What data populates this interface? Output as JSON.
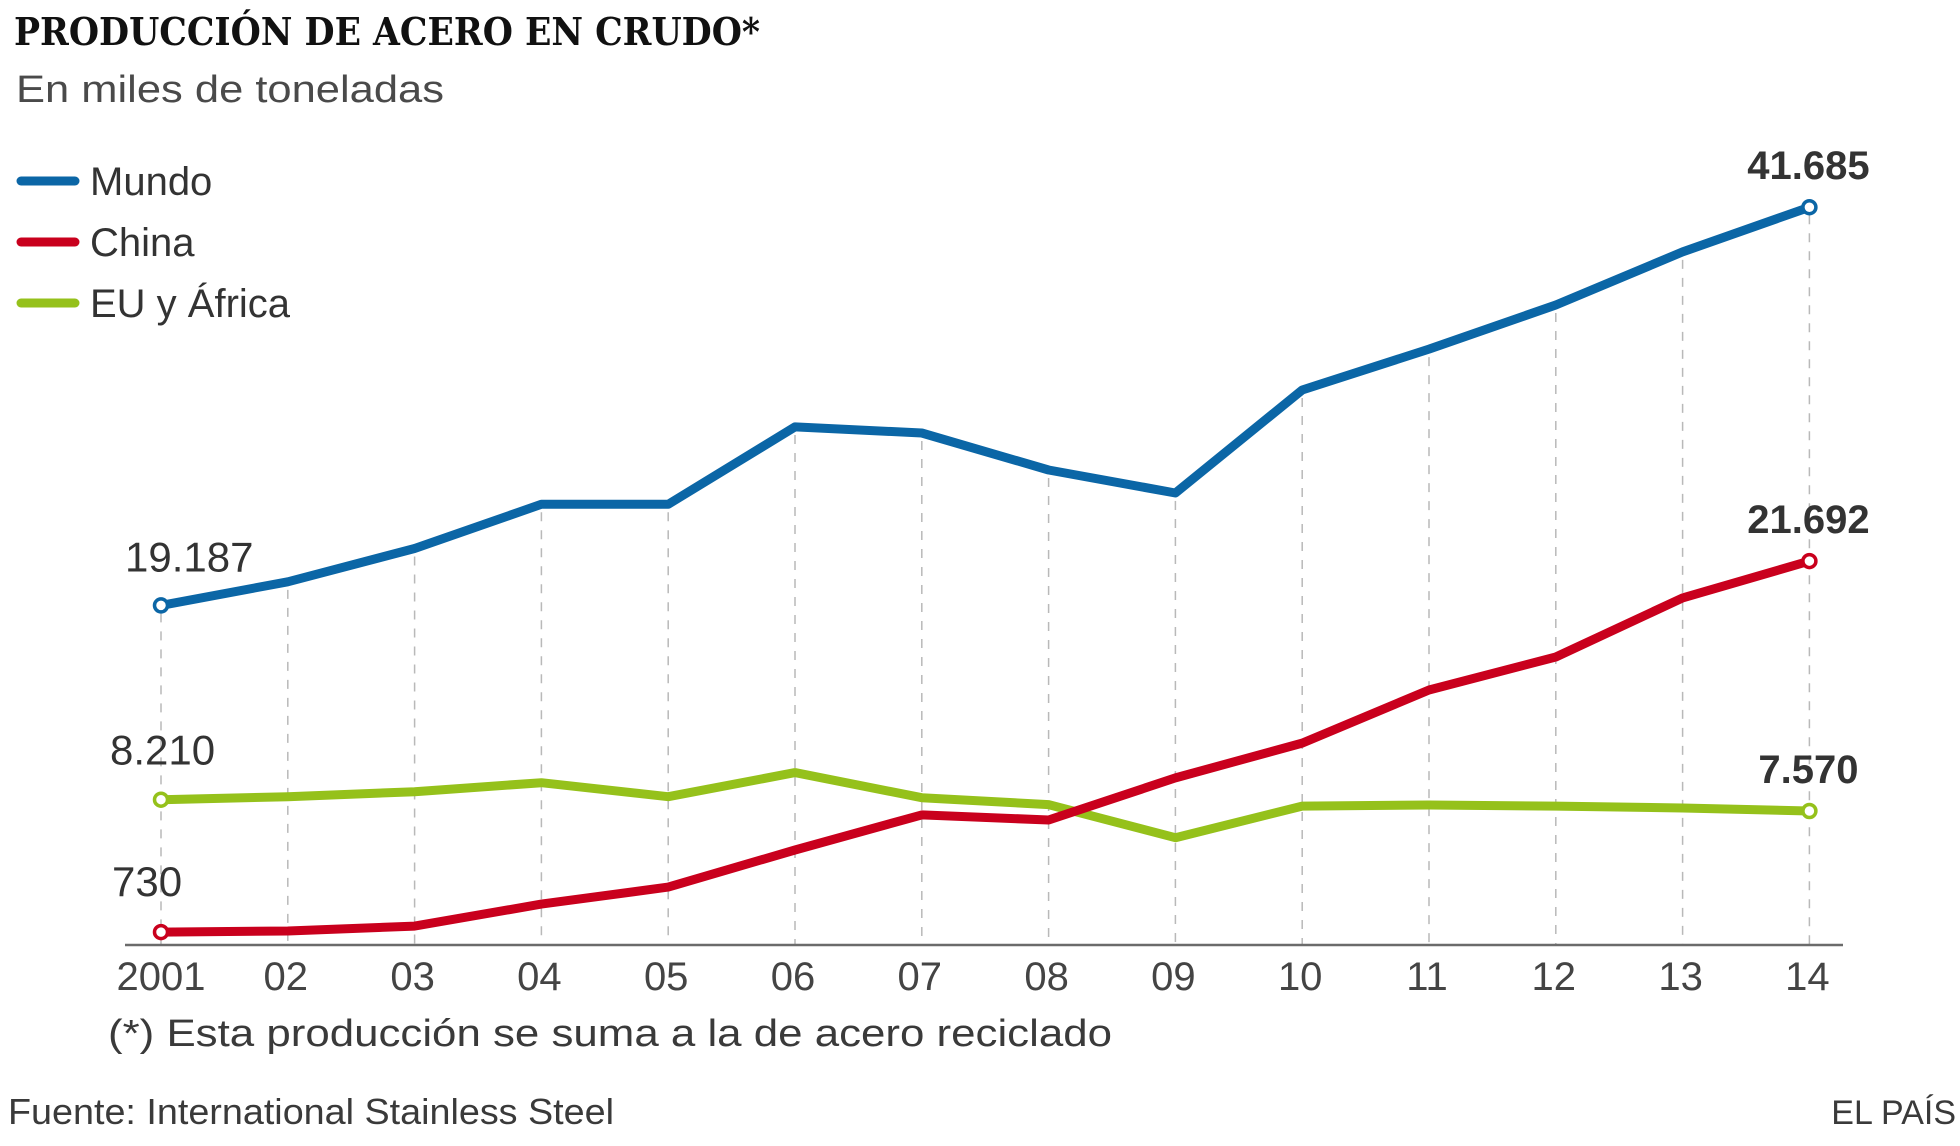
{
  "chart_data": {
    "type": "line",
    "title": "PRODUCCIÓN DE ACERO EN CRUDO*",
    "subtitle": "En miles de toneladas",
    "xlabel": "",
    "ylabel": "",
    "ylim": [
      0,
      42000
    ],
    "grid": "vertical dashed",
    "legend_position": "top-left",
    "x": [
      "2001",
      "02",
      "03",
      "04",
      "05",
      "06",
      "07",
      "08",
      "09",
      "10",
      "11",
      "12",
      "13",
      "14"
    ],
    "series": [
      {
        "name": "Mundo",
        "color": "#0b66a6",
        "values": [
          19187,
          20520,
          22400,
          24900,
          24900,
          29270,
          28930,
          26840,
          25540,
          31360,
          33670,
          36160,
          39160,
          41685
        ],
        "start_label": "19.187",
        "end_label": "41.685"
      },
      {
        "name": "China",
        "color": "#c9001d",
        "values": [
          730,
          790,
          1070,
          2310,
          3270,
          5370,
          7350,
          7060,
          9440,
          11410,
          14410,
          16270,
          19610,
          21692
        ],
        "start_label": "730",
        "end_label": "21.692"
      },
      {
        "name": "EU y África",
        "color": "#95c11b",
        "values": [
          8210,
          8380,
          8660,
          9170,
          8380,
          9740,
          8320,
          7930,
          6060,
          7850,
          7910,
          7850,
          7740,
          7570
        ],
        "start_label": "8.210",
        "end_label": "7.570"
      }
    ],
    "annotations": [
      "19.187",
      "41.685",
      "730",
      "21.692",
      "8.210",
      "7.570"
    ]
  },
  "footnote": "(*) Esta producción se suma a la de acero reciclado",
  "source": "Fuente: International Stainless Steel",
  "brand": "EL PAÍS"
}
